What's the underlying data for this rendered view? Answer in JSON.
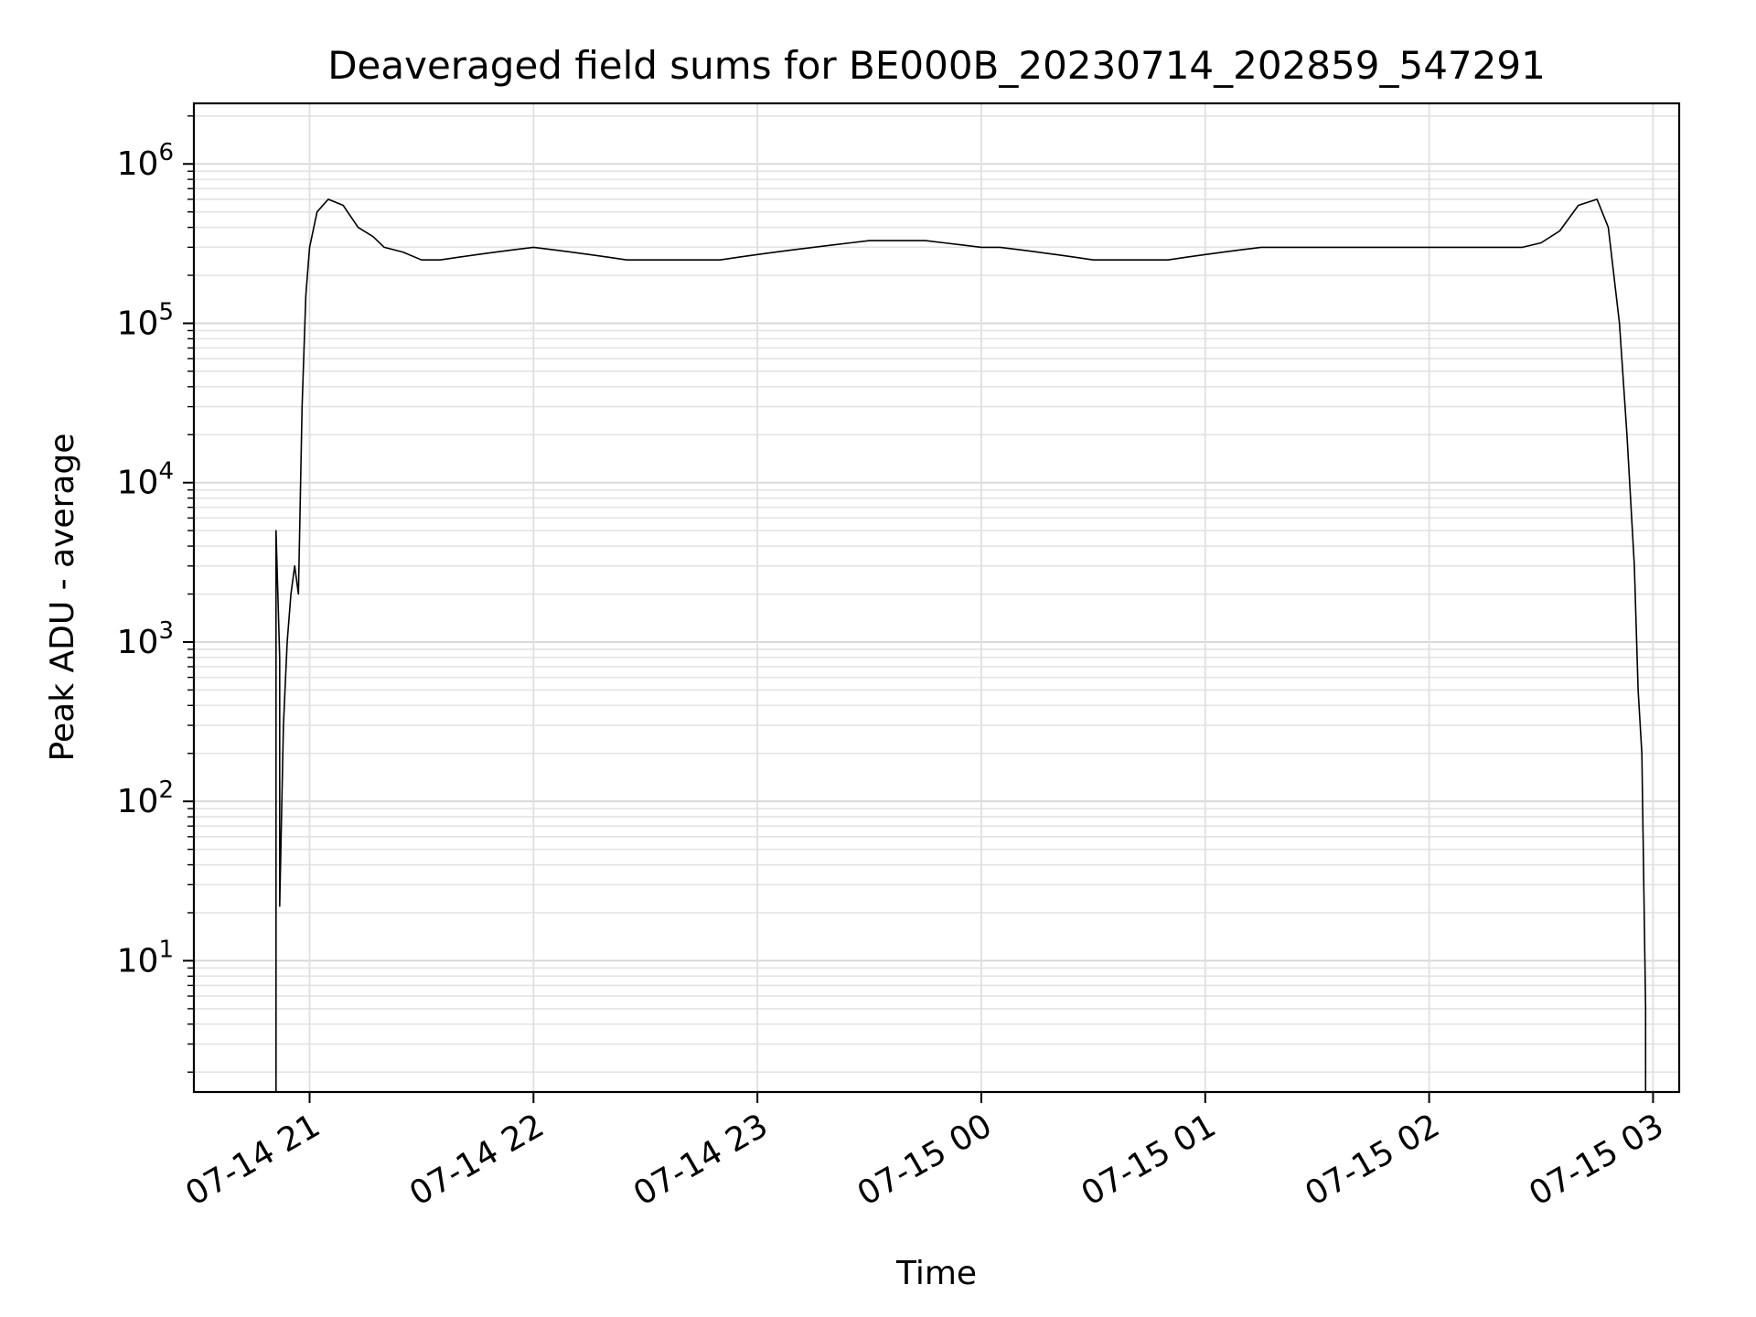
{
  "chart_data": {
    "type": "line",
    "title": "Deaveraged field sums for BE000B_20230714_202859_547291",
    "xlabel": "Time",
    "ylabel": "Peak ADU - average",
    "x_axis": {
      "kind": "datetime",
      "range": [
        "2023-07-14 20:29",
        "2023-07-15 03:07"
      ],
      "ticks": [
        {
          "value": "2023-07-14 21:00",
          "label": "07-14 21"
        },
        {
          "value": "2023-07-14 22:00",
          "label": "07-14 22"
        },
        {
          "value": "2023-07-14 23:00",
          "label": "07-14 23"
        },
        {
          "value": "2023-07-15 00:00",
          "label": "07-15 00"
        },
        {
          "value": "2023-07-15 01:00",
          "label": "07-15 01"
        },
        {
          "value": "2023-07-15 02:00",
          "label": "07-15 02"
        },
        {
          "value": "2023-07-15 03:00",
          "label": "07-15 03"
        }
      ]
    },
    "y_axis": {
      "scale": "log",
      "range": [
        1.5,
        2400000
      ],
      "ticks": [
        {
          "value": 10,
          "base": "10",
          "exp": "1"
        },
        {
          "value": 100,
          "base": "10",
          "exp": "2"
        },
        {
          "value": 1000,
          "base": "10",
          "exp": "3"
        },
        {
          "value": 10000,
          "base": "10",
          "exp": "4"
        },
        {
          "value": 100000,
          "base": "10",
          "exp": "5"
        },
        {
          "value": 1000000,
          "base": "10",
          "exp": "6"
        }
      ]
    },
    "grid": true,
    "line_color": "#000000",
    "series": [
      {
        "x": [
          "2023-07-14 20:51",
          "2023-07-14 20:51",
          "2023-07-14 20:52",
          "2023-07-14 20:52",
          "2023-07-14 20:53",
          "2023-07-14 20:54",
          "2023-07-14 20:55",
          "2023-07-14 20:56",
          "2023-07-14 20:57",
          "2023-07-14 20:58",
          "2023-07-14 20:59",
          "2023-07-14 21:00",
          "2023-07-14 21:02",
          "2023-07-14 21:05",
          "2023-07-14 21:09",
          "2023-07-14 21:13",
          "2023-07-14 21:17",
          "2023-07-14 21:20",
          "2023-07-14 21:25",
          "2023-07-14 21:30",
          "2023-07-14 21:35",
          "2023-07-14 21:40",
          "2023-07-14 21:45",
          "2023-07-14 21:50",
          "2023-07-14 21:55",
          "2023-07-14 22:00",
          "2023-07-14 22:05",
          "2023-07-14 22:10",
          "2023-07-14 22:15",
          "2023-07-14 22:20",
          "2023-07-14 22:25",
          "2023-07-14 22:30",
          "2023-07-14 22:35",
          "2023-07-14 22:40",
          "2023-07-14 22:45",
          "2023-07-14 22:50",
          "2023-07-14 22:55",
          "2023-07-14 23:00",
          "2023-07-14 23:05",
          "2023-07-14 23:10",
          "2023-07-14 23:15",
          "2023-07-14 23:20",
          "2023-07-14 23:25",
          "2023-07-14 23:30",
          "2023-07-14 23:35",
          "2023-07-14 23:40",
          "2023-07-14 23:45",
          "2023-07-14 23:50",
          "2023-07-14 23:55",
          "2023-07-15 00:00",
          "2023-07-15 00:05",
          "2023-07-15 00:10",
          "2023-07-15 00:15",
          "2023-07-15 00:20",
          "2023-07-15 00:25",
          "2023-07-15 00:30",
          "2023-07-15 00:35",
          "2023-07-15 00:40",
          "2023-07-15 00:45",
          "2023-07-15 00:50",
          "2023-07-15 00:55",
          "2023-07-15 01:00",
          "2023-07-15 01:05",
          "2023-07-15 01:10",
          "2023-07-15 01:15",
          "2023-07-15 01:20",
          "2023-07-15 01:25",
          "2023-07-15 01:30",
          "2023-07-15 01:35",
          "2023-07-15 01:40",
          "2023-07-15 01:45",
          "2023-07-15 01:50",
          "2023-07-15 01:55",
          "2023-07-15 02:00",
          "2023-07-15 02:05",
          "2023-07-15 02:10",
          "2023-07-15 02:15",
          "2023-07-15 02:20",
          "2023-07-15 02:25",
          "2023-07-15 02:30",
          "2023-07-15 02:35",
          "2023-07-15 02:40",
          "2023-07-15 02:45",
          "2023-07-15 02:48",
          "2023-07-15 02:51",
          "2023-07-15 02:53",
          "2023-07-15 02:55",
          "2023-07-15 02:56",
          "2023-07-15 02:57",
          "2023-07-15 02:58",
          "2023-07-15 02:58"
        ],
        "y": [
          1.5,
          5000,
          800,
          22,
          300,
          1000,
          2000,
          3000,
          2000,
          30000,
          150000,
          300000,
          500000,
          600000,
          550000,
          400000,
          350000,
          300000,
          280000,
          250000,
          250000,
          260000,
          270000,
          280000,
          290000,
          300000,
          290000,
          280000,
          270000,
          260000,
          250000,
          250000,
          250000,
          250000,
          250000,
          250000,
          260000,
          270000,
          280000,
          290000,
          300000,
          310000,
          320000,
          330000,
          330000,
          330000,
          330000,
          320000,
          310000,
          300000,
          300000,
          290000,
          280000,
          270000,
          260000,
          250000,
          250000,
          250000,
          250000,
          250000,
          260000,
          270000,
          280000,
          290000,
          300000,
          300000,
          300000,
          300000,
          300000,
          300000,
          300000,
          300000,
          300000,
          300000,
          300000,
          300000,
          300000,
          300000,
          300000,
          320000,
          380000,
          550000,
          600000,
          400000,
          100000,
          20000,
          3000,
          500,
          200,
          5,
          1.5
        ]
      }
    ]
  }
}
